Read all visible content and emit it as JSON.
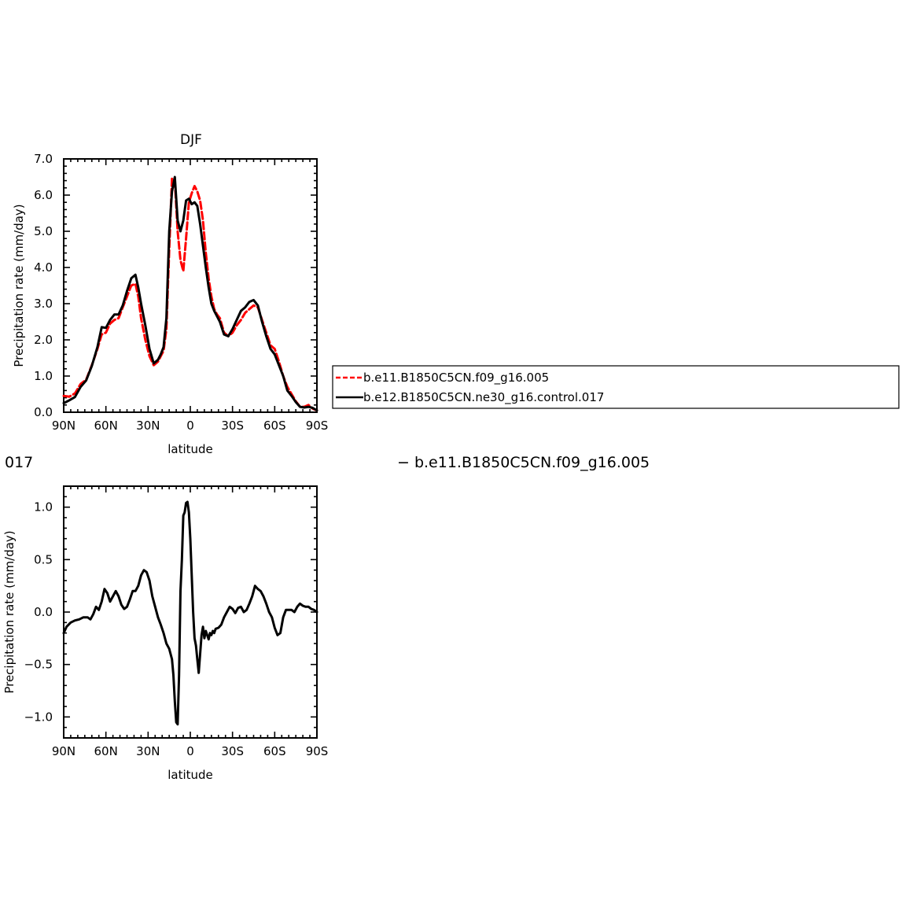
{
  "colors": {
    "model_a": "#ff0000",
    "model_b": "#000000"
  },
  "chart_data": [
    {
      "type": "line",
      "title": "DJF",
      "xlabel": "latitude",
      "ylabel": "Precipitation rate (mm/day)",
      "xlim": [
        90,
        -90
      ],
      "ylim": [
        0,
        7
      ],
      "xticks": [
        90,
        60,
        30,
        0,
        -30,
        -60,
        -90
      ],
      "xticklabels": [
        "90N",
        "60N",
        "30N",
        "0",
        "30S",
        "60S",
        "90S"
      ],
      "yticks": [
        0,
        1,
        2,
        3,
        4,
        5,
        6,
        7
      ],
      "yticklabels": [
        "0.0",
        "1.0",
        "2.0",
        "3.0",
        "4.0",
        "5.0",
        "6.0",
        "7.0"
      ],
      "legend_placement": "right, outside plot",
      "series": [
        {
          "name": "b.e11.B1850C5CN.f09_g16.005",
          "color": "#ff0000",
          "style": "dashed",
          "x": [
            90,
            86,
            82,
            78,
            74,
            70,
            66,
            63,
            60,
            57,
            54,
            51,
            48,
            45,
            42,
            39,
            37,
            35,
            32,
            29,
            26,
            23,
            21,
            19,
            17,
            15,
            13,
            11,
            9,
            7,
            5,
            3,
            1,
            -1,
            -3,
            -5,
            -7,
            -9,
            -11,
            -13,
            -15,
            -17,
            -19,
            -21,
            -24,
            -27,
            -30,
            -33,
            -36,
            -39,
            -42,
            -45,
            -48,
            -51,
            -54,
            -57,
            -60,
            -63,
            -66,
            -69,
            -72,
            -75,
            -78,
            -81,
            -84,
            -87,
            -90
          ],
          "y": [
            0.45,
            0.43,
            0.52,
            0.78,
            0.9,
            1.3,
            1.75,
            2.15,
            2.2,
            2.45,
            2.55,
            2.6,
            2.9,
            3.2,
            3.5,
            3.55,
            3.2,
            2.6,
            2.0,
            1.55,
            1.3,
            1.4,
            1.55,
            1.7,
            2.3,
            4.5,
            6.45,
            6.4,
            5.0,
            4.2,
            3.9,
            4.8,
            5.8,
            6.05,
            6.25,
            6.1,
            5.85,
            5.3,
            4.4,
            3.7,
            3.2,
            2.85,
            2.7,
            2.6,
            2.2,
            2.1,
            2.2,
            2.4,
            2.55,
            2.75,
            2.85,
            2.95,
            2.9,
            2.55,
            2.2,
            1.85,
            1.75,
            1.4,
            1.0,
            0.7,
            0.5,
            0.3,
            0.15,
            0.15,
            0.2,
            0.1,
            0.05
          ]
        },
        {
          "name": "b.e12.B1850C5CN.ne30_g16.control.017",
          "color": "#000000",
          "style": "solid",
          "x": [
            90,
            86,
            82,
            78,
            74,
            70,
            66,
            63,
            60,
            57,
            54,
            51,
            48,
            45,
            42,
            39,
            37,
            35,
            32,
            29,
            26,
            23,
            21,
            19,
            17,
            15,
            13,
            11,
            9,
            7,
            5,
            3,
            1,
            -1,
            -3,
            -5,
            -7,
            -9,
            -11,
            -13,
            -15,
            -17,
            -19,
            -21,
            -24,
            -27,
            -30,
            -33,
            -36,
            -39,
            -42,
            -45,
            -48,
            -51,
            -54,
            -57,
            -60,
            -63,
            -66,
            -69,
            -72,
            -75,
            -78,
            -81,
            -84,
            -87,
            -90
          ],
          "y": [
            0.25,
            0.33,
            0.42,
            0.7,
            0.88,
            1.28,
            1.8,
            2.35,
            2.33,
            2.55,
            2.7,
            2.7,
            2.95,
            3.35,
            3.7,
            3.8,
            3.45,
            3.0,
            2.4,
            1.75,
            1.35,
            1.45,
            1.6,
            1.8,
            2.6,
            5.0,
            6.1,
            6.5,
            5.3,
            5.0,
            5.3,
            5.85,
            5.9,
            5.75,
            5.8,
            5.7,
            5.2,
            4.6,
            4.0,
            3.45,
            3.0,
            2.8,
            2.65,
            2.5,
            2.15,
            2.1,
            2.3,
            2.55,
            2.8,
            2.9,
            3.05,
            3.1,
            2.95,
            2.5,
            2.1,
            1.75,
            1.6,
            1.3,
            1.0,
            0.6,
            0.45,
            0.28,
            0.15,
            0.13,
            0.15,
            0.12,
            0.05
          ]
        }
      ]
    },
    {
      "type": "line",
      "title": "",
      "xlabel": "latitude",
      "ylabel": "Precipitation rate (mm/day)",
      "xlim": [
        90,
        -90
      ],
      "ylim": [
        -1.2,
        1.2
      ],
      "xticks": [
        90,
        60,
        30,
        0,
        -30,
        -60,
        -90
      ],
      "xticklabels": [
        "90N",
        "60N",
        "30N",
        "0",
        "30S",
        "60S",
        "90S"
      ],
      "yticks": [
        1.0,
        0.5,
        0.0,
        -0.5,
        -1.0
      ],
      "yticklabels": [
        "1.0",
        "0.5",
        "0.0",
        "−0.5",
        "−1.0"
      ],
      "series": [
        {
          "color": "#000000",
          "style": "solid",
          "x": [
            90,
            88,
            85,
            82,
            79,
            76,
            73,
            71,
            69,
            67,
            65,
            63,
            61,
            59,
            57,
            55,
            53,
            51,
            49,
            47,
            45,
            43,
            41,
            39,
            37,
            35,
            33,
            31,
            29,
            27,
            25,
            23,
            21,
            19,
            17,
            15,
            13,
            12,
            11,
            10,
            9,
            8,
            7,
            6,
            5,
            4,
            3,
            2,
            1,
            0,
            -1,
            -2,
            -3,
            -4,
            -5,
            -6,
            -7,
            -8,
            -9,
            -10,
            -11,
            -12,
            -13,
            -14,
            -15,
            -16,
            -17,
            -18,
            -20,
            -22,
            -24,
            -26,
            -28,
            -30,
            -32,
            -34,
            -36,
            -38,
            -40,
            -42,
            -44,
            -46,
            -48,
            -50,
            -52,
            -54,
            -56,
            -58,
            -60,
            -62,
            -64,
            -66,
            -68,
            -70,
            -72,
            -74,
            -76,
            -78,
            -80,
            -82,
            -84,
            -86,
            -88,
            -90
          ],
          "y": [
            -0.2,
            -0.14,
            -0.1,
            -0.08,
            -0.07,
            -0.05,
            -0.05,
            -0.07,
            -0.02,
            0.05,
            0.02,
            0.1,
            0.22,
            0.18,
            0.1,
            0.15,
            0.2,
            0.15,
            0.07,
            0.03,
            0.05,
            0.12,
            0.2,
            0.2,
            0.25,
            0.35,
            0.4,
            0.38,
            0.3,
            0.15,
            0.05,
            -0.05,
            -0.12,
            -0.2,
            -0.3,
            -0.35,
            -0.45,
            -0.6,
            -0.85,
            -1.05,
            -1.07,
            -0.6,
            0.2,
            0.5,
            0.92,
            0.95,
            1.04,
            1.05,
            0.95,
            0.7,
            0.35,
            0.0,
            -0.25,
            -0.32,
            -0.45,
            -0.58,
            -0.4,
            -0.22,
            -0.14,
            -0.25,
            -0.18,
            -0.22,
            -0.26,
            -0.2,
            -0.22,
            -0.18,
            -0.2,
            -0.16,
            -0.15,
            -0.12,
            -0.05,
            0.0,
            0.05,
            0.03,
            -0.01,
            0.04,
            0.05,
            0.0,
            0.02,
            0.08,
            0.15,
            0.25,
            0.22,
            0.2,
            0.15,
            0.08,
            0.0,
            -0.05,
            -0.15,
            -0.22,
            -0.2,
            -0.05,
            0.02,
            0.02,
            0.02,
            0.0,
            0.05,
            0.08,
            0.06,
            0.05,
            0.05,
            0.03,
            0.02,
            0.0
          ]
        }
      ]
    }
  ],
  "fragments": {
    "left_fragment": "017",
    "right_fragment": "− b.e11.B1850C5CN.f09_g16.005"
  }
}
